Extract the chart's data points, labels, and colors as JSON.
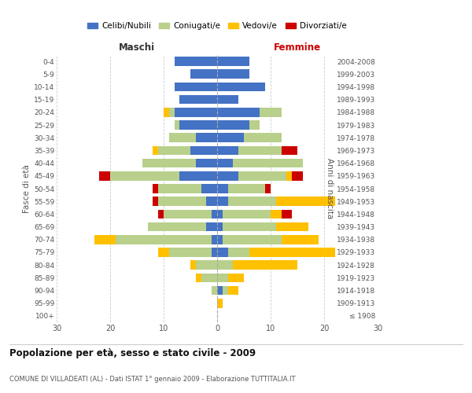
{
  "age_groups": [
    "100+",
    "95-99",
    "90-94",
    "85-89",
    "80-84",
    "75-79",
    "70-74",
    "65-69",
    "60-64",
    "55-59",
    "50-54",
    "45-49",
    "40-44",
    "35-39",
    "30-34",
    "25-29",
    "20-24",
    "15-19",
    "10-14",
    "5-9",
    "0-4"
  ],
  "birth_years": [
    "≤ 1908",
    "1909-1913",
    "1914-1918",
    "1919-1923",
    "1924-1928",
    "1929-1933",
    "1934-1938",
    "1939-1943",
    "1944-1948",
    "1949-1953",
    "1954-1958",
    "1959-1963",
    "1964-1968",
    "1969-1973",
    "1974-1978",
    "1979-1983",
    "1984-1988",
    "1989-1993",
    "1994-1998",
    "1999-2003",
    "2004-2008"
  ],
  "male": {
    "celibi": [
      0,
      0,
      0,
      0,
      0,
      1,
      1,
      2,
      1,
      2,
      3,
      7,
      4,
      5,
      4,
      7,
      8,
      7,
      8,
      5,
      8
    ],
    "coniugati": [
      0,
      0,
      1,
      3,
      4,
      8,
      18,
      11,
      9,
      9,
      8,
      13,
      10,
      6,
      5,
      1,
      1,
      0,
      0,
      0,
      0
    ],
    "vedovi": [
      0,
      0,
      0,
      1,
      1,
      2,
      4,
      0,
      0,
      0,
      0,
      0,
      0,
      1,
      0,
      0,
      1,
      0,
      0,
      0,
      0
    ],
    "divorziati": [
      0,
      0,
      0,
      0,
      0,
      0,
      0,
      0,
      1,
      1,
      1,
      2,
      0,
      0,
      0,
      0,
      0,
      0,
      0,
      0,
      0
    ]
  },
  "female": {
    "nubili": [
      0,
      0,
      1,
      0,
      0,
      2,
      1,
      1,
      1,
      2,
      2,
      4,
      3,
      4,
      5,
      6,
      8,
      4,
      9,
      6,
      6
    ],
    "coniugate": [
      0,
      0,
      1,
      2,
      3,
      4,
      11,
      10,
      9,
      9,
      7,
      9,
      13,
      8,
      7,
      2,
      4,
      0,
      0,
      0,
      0
    ],
    "vedove": [
      0,
      1,
      2,
      3,
      12,
      16,
      7,
      6,
      2,
      11,
      0,
      1,
      0,
      0,
      0,
      0,
      0,
      0,
      0,
      0,
      0
    ],
    "divorziate": [
      0,
      0,
      0,
      0,
      0,
      0,
      0,
      0,
      2,
      0,
      1,
      2,
      0,
      3,
      0,
      0,
      0,
      0,
      0,
      0,
      0
    ]
  },
  "colors": {
    "celibi": "#4472c4",
    "coniugati": "#b8d08c",
    "vedovi": "#ffc000",
    "divorziati": "#cc0000"
  },
  "title": "Popolazione per età, sesso e stato civile - 2009",
  "subtitle": "COMUNE DI VILLADEATI (AL) - Dati ISTAT 1° gennaio 2009 - Elaborazione TUTTITALIA.IT",
  "xlabel_left": "Maschi",
  "xlabel_right": "Femmine",
  "ylabel_left": "Fasce di età",
  "ylabel_right": "Anni di nascita",
  "xlim": 30,
  "legend_labels": [
    "Celibi/Nubili",
    "Coniugati/e",
    "Vedovi/e",
    "Divorziati/e"
  ],
  "background_color": "#ffffff",
  "grid_color": "#cccccc"
}
